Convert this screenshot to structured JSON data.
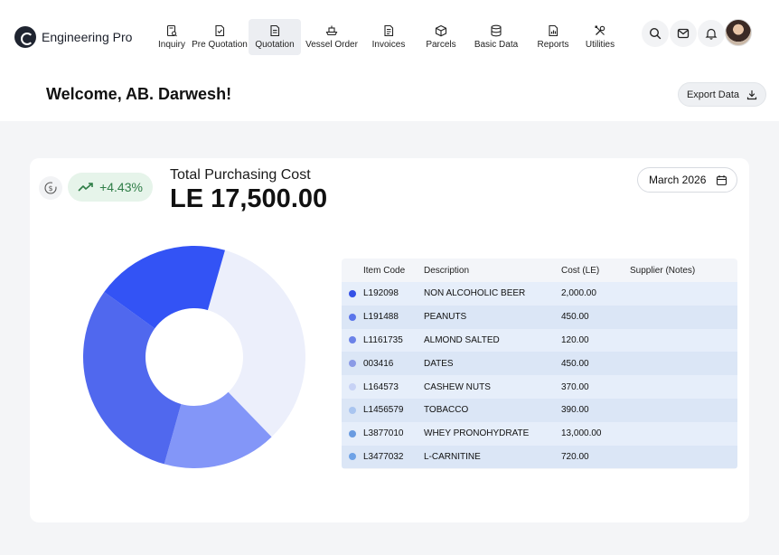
{
  "app": {
    "name": "Engineering Pro"
  },
  "nav": [
    {
      "label": "Inquiry",
      "icon": "inquiry-icon",
      "active": false
    },
    {
      "label": "Pre Quotation",
      "icon": "pre-quotation-icon",
      "active": false
    },
    {
      "label": "Quotation",
      "icon": "quotation-icon",
      "active": true
    },
    {
      "label": "Vessel Order",
      "icon": "ship-icon",
      "active": false
    },
    {
      "label": "Invoices",
      "icon": "invoice-icon",
      "active": false
    },
    {
      "label": "Parcels",
      "icon": "box-icon",
      "active": false
    },
    {
      "label": "Basic Data",
      "icon": "database-icon",
      "active": false
    },
    {
      "label": "Reports",
      "icon": "report-icon",
      "active": false
    },
    {
      "label": "Utilities",
      "icon": "tools-icon",
      "active": false
    }
  ],
  "header": {
    "welcome": "Welcome, AB. Darwesh!",
    "export_label": "Export Data"
  },
  "summary": {
    "title": "Total Purchasing Cost",
    "value": "LE 17,500.00",
    "trend": "+4.43%",
    "month": "March 2026",
    "colors": {
      "trend_bg": "#e6f4ea",
      "trend_fg": "#2e7d46"
    }
  },
  "table": {
    "headers": [
      "Item Code",
      "Description",
      "Cost (LE)",
      "Supplier (Notes)"
    ],
    "rows": [
      {
        "code": "L192098",
        "desc": "NON ALCOHOLIC BEER",
        "cost": "2,000.00",
        "supplier": "",
        "color": "#3451e6"
      },
      {
        "code": "L191488",
        "desc": "PEANUTS",
        "cost": "450.00",
        "supplier": "",
        "color": "#5a74ea"
      },
      {
        "code": "L1161735",
        "desc": "ALMOND SALTED",
        "cost": "120.00",
        "supplier": "",
        "color": "#6b82e8"
      },
      {
        "code": "003416",
        "desc": "DATES",
        "cost": "450.00",
        "supplier": "",
        "color": "#8a9ae6"
      },
      {
        "code": "L164573",
        "desc": "CASHEW NUTS",
        "cost": "370.00",
        "supplier": "",
        "color": "#c7d2f5"
      },
      {
        "code": "L1456579",
        "desc": "TOBACCO",
        "cost": "390.00",
        "supplier": "",
        "color": "#a9c5f0"
      },
      {
        "code": "L3877010",
        "desc": "WHEY PRONOHYDRATE",
        "cost": "13,000.00",
        "supplier": "",
        "color": "#6a9be0"
      },
      {
        "code": "L3477032",
        "desc": "L-CARNITINE",
        "cost": "720.00",
        "supplier": "",
        "color": "#6ea2e6"
      }
    ]
  },
  "chart_data": {
    "type": "pie",
    "donut": true,
    "slices": [
      {
        "share": 0.333,
        "color": "#eceffb"
      },
      {
        "share": 0.166,
        "color": "#8396f8"
      },
      {
        "share": 0.306,
        "color": "#5068ee"
      },
      {
        "share": 0.195,
        "color": "#3353f5"
      }
    ]
  }
}
